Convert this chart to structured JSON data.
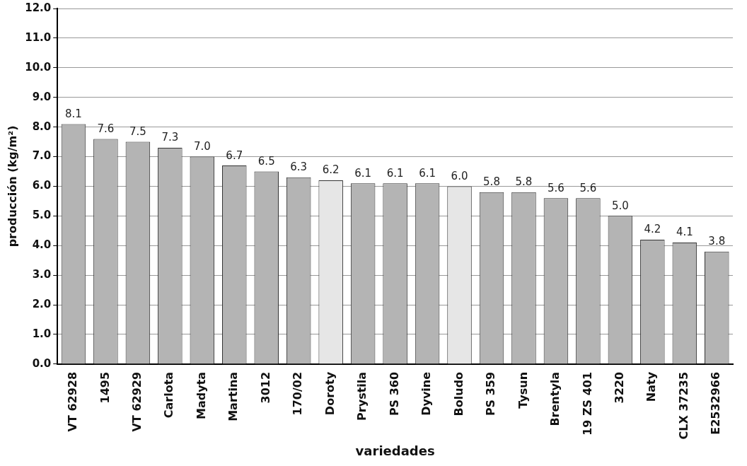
{
  "chart_data": {
    "type": "bar",
    "xlabel": "variedades",
    "ylabel": "producción (kg/m²)",
    "categories": [
      "VT 62928",
      "1495",
      "VT 62929",
      "Carlota",
      "Madyta",
      "Martina",
      "3012",
      "170/02",
      "Doroty",
      "Prystila",
      "PS 360",
      "Dyvine",
      "Boludo",
      "PS 359",
      "Tysun",
      "Brentyla",
      "19 ZS 401",
      "3220",
      "Naty",
      "CLX 37235",
      "E2532966"
    ],
    "values": [
      8.1,
      7.6,
      7.5,
      7.3,
      7.0,
      6.7,
      6.5,
      6.3,
      6.2,
      6.1,
      6.1,
      6.1,
      6.0,
      5.8,
      5.8,
      5.6,
      5.6,
      5.0,
      4.2,
      4.1,
      3.8
    ],
    "value_labels": [
      "8.1",
      "7.6",
      "7.5",
      "7.3",
      "7.0",
      "6.7",
      "6.5",
      "6.3",
      "6.2",
      "6.1",
      "6.1",
      "6.1",
      "6.0",
      "5.8",
      "5.8",
      "5.6",
      "5.6",
      "5.0",
      "4.2",
      "4.1",
      "3.8"
    ],
    "colors": [
      "#b4b4b4",
      "#b4b4b4",
      "#b4b4b4",
      "#b4b4b4",
      "#b4b4b4",
      "#b4b4b4",
      "#b4b4b4",
      "#b4b4b4",
      "#e6e6e6",
      "#b4b4b4",
      "#b4b4b4",
      "#b4b4b4",
      "#e6e6e6",
      "#b4b4b4",
      "#b4b4b4",
      "#b4b4b4",
      "#b4b4b4",
      "#b4b4b4",
      "#b4b4b4",
      "#b4b4b4",
      "#b4b4b4"
    ],
    "ylim": [
      0,
      12
    ],
    "yticks": [
      {
        "value": 0,
        "label": "0.0"
      },
      {
        "value": 1,
        "label": "1.0"
      },
      {
        "value": 2,
        "label": "2.0"
      },
      {
        "value": 3,
        "label": "3.0"
      },
      {
        "value": 4,
        "label": "4.0"
      },
      {
        "value": 5,
        "label": "5.0"
      },
      {
        "value": 6,
        "label": "6.0"
      },
      {
        "value": 7,
        "label": "7.0"
      },
      {
        "value": 8,
        "label": "8.0"
      },
      {
        "value": 9,
        "label": "9.0"
      },
      {
        "value": 10,
        "label": "10.0"
      },
      {
        "value": 11,
        "label": "11.0"
      },
      {
        "value": 12,
        "label": "12.0"
      }
    ],
    "grid": "y",
    "legend": false
  }
}
